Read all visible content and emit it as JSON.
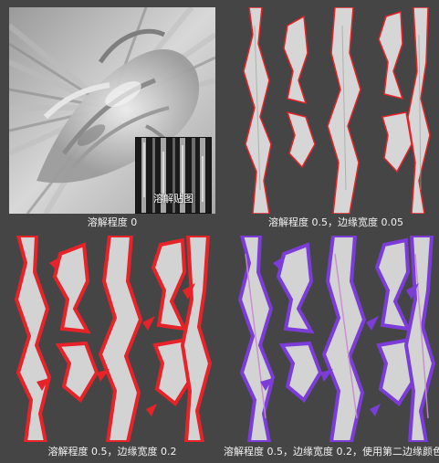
{
  "panels": [
    {
      "id": "p0",
      "caption": "溶解程度 0",
      "inset_label": "溶解贴图"
    },
    {
      "id": "p1",
      "caption": "溶解程度 0.5，边缘宽度 0.05"
    },
    {
      "id": "p2",
      "caption": "溶解程度 0.5，边缘宽度 0.2"
    },
    {
      "id": "p3",
      "caption": "溶解程度 0.5，边缘宽度 0.2，使用第二边缘颜色"
    }
  ],
  "colors": {
    "background": "#454545",
    "edge_red": "#e52328",
    "edge_purple": "#7b3cd8",
    "texture_light": "#d9d9d9",
    "texture_dark": "#7a7a7a",
    "caption_text": "#f2f2f2"
  }
}
